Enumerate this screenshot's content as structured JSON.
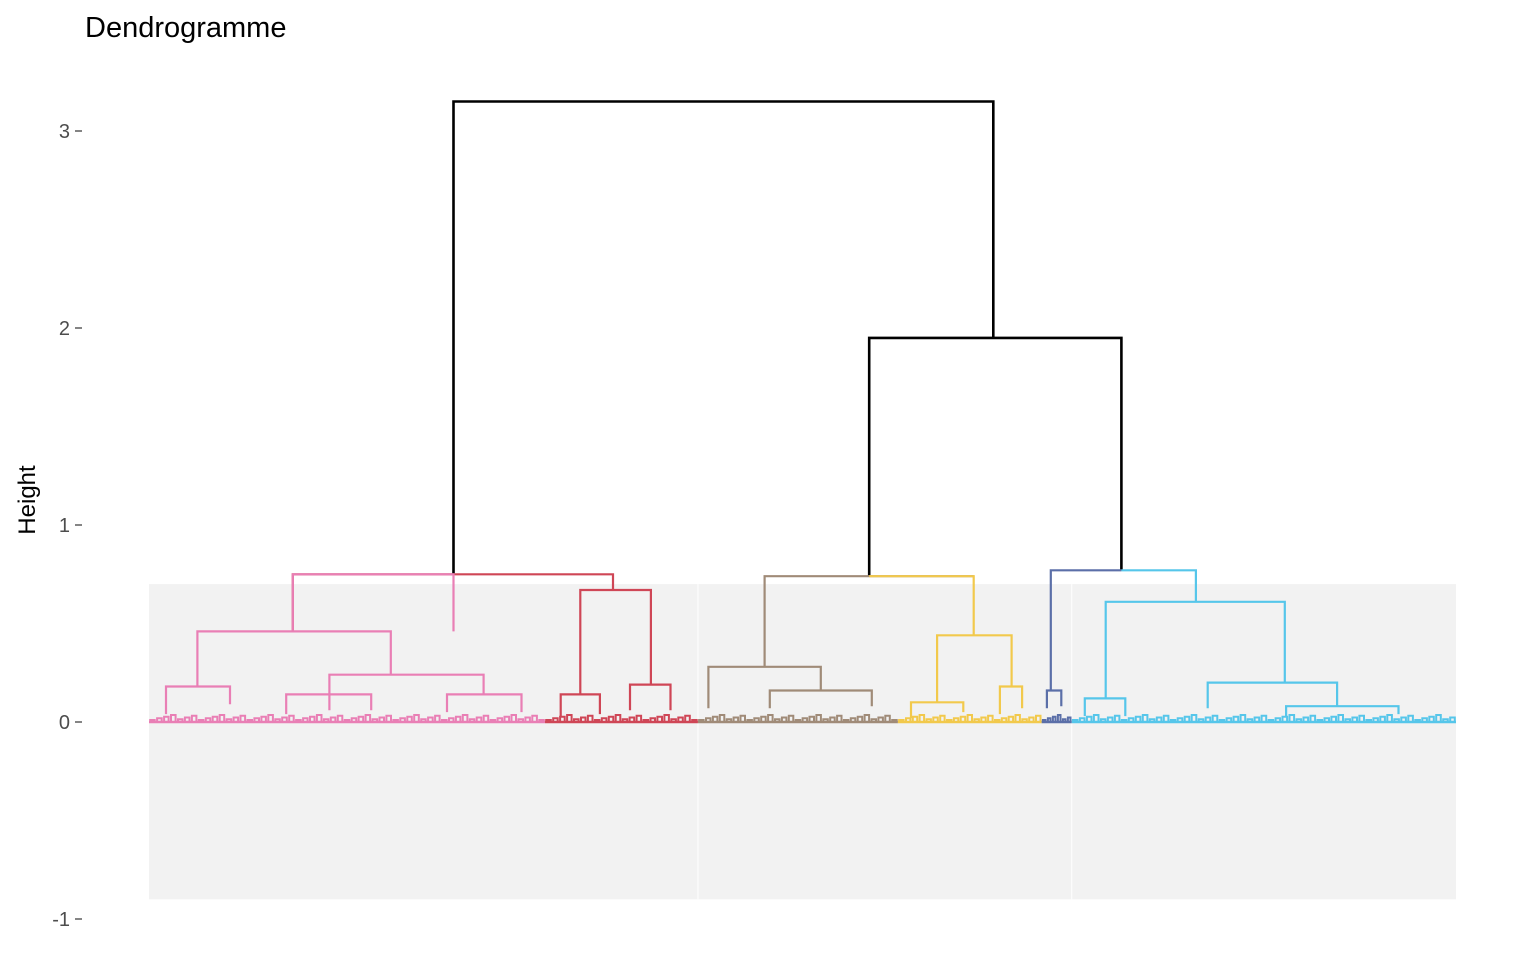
{
  "chart_data": {
    "type": "dendrogram",
    "title": "Dendrogramme",
    "ylabel": "Height",
    "xlabel": "",
    "ylim": [
      -1,
      3.2
    ],
    "yticks": [
      {
        "value": 3,
        "label": "3"
      },
      {
        "value": 2,
        "label": "2"
      },
      {
        "value": 1,
        "label": "1"
      },
      {
        "value": 0,
        "label": "0"
      },
      {
        "value": -1,
        "label": "-1"
      }
    ],
    "grid": false,
    "rect_shading": {
      "color": "#f2f2f2",
      "height": 0.7
    },
    "clusters": [
      {
        "id": "pink",
        "color": "#e97fb5",
        "x_range": [
          0.0,
          30.3
        ]
      },
      {
        "id": "red",
        "color": "#cf4656",
        "x_range": [
          30.3,
          42.0
        ]
      },
      {
        "id": "brown",
        "color": "#a08b78",
        "x_range": [
          42.0,
          57.3
        ]
      },
      {
        "id": "yellow",
        "color": "#f2c94c",
        "x_range": [
          57.3,
          68.3
        ]
      },
      {
        "id": "navy",
        "color": "#5b6fa8",
        "x_range": [
          68.3,
          70.6
        ]
      },
      {
        "id": "cyan",
        "color": "#56c6ea",
        "x_range": [
          70.6,
          100.0
        ]
      }
    ],
    "shade_boxes": [
      [
        0.0,
        42.0
      ],
      [
        42.0,
        70.6
      ],
      [
        70.6,
        100.0
      ]
    ],
    "merges": [
      {
        "x": [
          23.3,
          64.6
        ],
        "h": 3.15,
        "color": "#000000",
        "lh": 0.75,
        "rh": 1.95
      },
      {
        "x": [
          55.1,
          74.4
        ],
        "h": 1.95,
        "color": "#000000",
        "lh": 0.74,
        "rh": 0.77
      },
      {
        "x": [
          11.0,
          35.5
        ],
        "h": 0.75,
        "color": "#cf4656",
        "lh": 0.46,
        "rh": 0.67
      },
      {
        "x": [
          11.0,
          23.3
        ],
        "h": 0.75,
        "color": "#e97fb5",
        "lh": 0.46,
        "rh": 0.46
      },
      {
        "x": [
          3.7,
          18.5
        ],
        "h": 0.46,
        "color": "#e97fb5",
        "lh": 0.18,
        "rh": 0.24
      },
      {
        "x": [
          1.3,
          6.2
        ],
        "h": 0.18,
        "color": "#e97fb5",
        "lh": 0.04,
        "rh": 0.09
      },
      {
        "x": [
          13.8,
          25.6
        ],
        "h": 0.24,
        "color": "#e97fb5",
        "lh": 0.06,
        "rh": 0.14
      },
      {
        "x": [
          10.5,
          17.0
        ],
        "h": 0.14,
        "color": "#e97fb5",
        "lh": 0.04,
        "rh": 0.06
      },
      {
        "x": [
          22.8,
          28.5
        ],
        "h": 0.14,
        "color": "#e97fb5",
        "lh": 0.05,
        "rh": 0.05
      },
      {
        "x": [
          33.0,
          38.4
        ],
        "h": 0.67,
        "color": "#cf4656",
        "lh": 0.14,
        "rh": 0.19
      },
      {
        "x": [
          31.5,
          34.5
        ],
        "h": 0.14,
        "color": "#cf4656",
        "lh": 0.03,
        "rh": 0.04
      },
      {
        "x": [
          36.8,
          39.9
        ],
        "h": 0.19,
        "color": "#cf4656",
        "lh": 0.06,
        "rh": 0.06
      },
      {
        "x": [
          47.1,
          63.1
        ],
        "h": 0.74,
        "color": "#a08b78",
        "lh": 0.28,
        "rh": 0.74
      },
      {
        "x": [
          42.8,
          51.4
        ],
        "h": 0.28,
        "color": "#a08b78",
        "lh": 0.07,
        "rh": 0.16
      },
      {
        "x": [
          47.5,
          55.3
        ],
        "h": 0.16,
        "color": "#a08b78",
        "lh": 0.07,
        "rh": 0.08
      },
      {
        "x": [
          55.1,
          63.1
        ],
        "h": 0.74,
        "color": "#f2c94c",
        "lh": 0.74,
        "rh": 0.44
      },
      {
        "x": [
          60.3,
          66.0
        ],
        "h": 0.44,
        "color": "#f2c94c",
        "lh": 0.1,
        "rh": 0.18
      },
      {
        "x": [
          58.3,
          62.3
        ],
        "h": 0.1,
        "color": "#f2c94c",
        "lh": 0.02,
        "rh": 0.05
      },
      {
        "x": [
          65.1,
          66.8
        ],
        "h": 0.18,
        "color": "#f2c94c",
        "lh": 0.04,
        "rh": 0.07
      },
      {
        "x": [
          69.0,
          74.4
        ],
        "h": 0.77,
        "color": "#5b6fa8",
        "lh": 0.16,
        "rh": 0.77
      },
      {
        "x": [
          68.7,
          69.8
        ],
        "h": 0.16,
        "color": "#5b6fa8",
        "lh": 0.07,
        "rh": 0.08
      },
      {
        "x": [
          74.4,
          80.1
        ],
        "h": 0.77,
        "color": "#56c6ea",
        "lh": 0.77,
        "rh": 0.61
      },
      {
        "x": [
          73.2,
          86.9
        ],
        "h": 0.61,
        "color": "#56c6ea",
        "lh": 0.12,
        "rh": 0.2
      },
      {
        "x": [
          71.6,
          74.7
        ],
        "h": 0.12,
        "color": "#56c6ea",
        "lh": 0.03,
        "rh": 0.03
      },
      {
        "x": [
          81.0,
          90.9
        ],
        "h": 0.2,
        "color": "#56c6ea",
        "lh": 0.07,
        "rh": 0.08
      },
      {
        "x": [
          87.0,
          95.6
        ],
        "h": 0.08,
        "color": "#56c6ea",
        "lh": 0.03,
        "rh": 0.04
      }
    ]
  }
}
